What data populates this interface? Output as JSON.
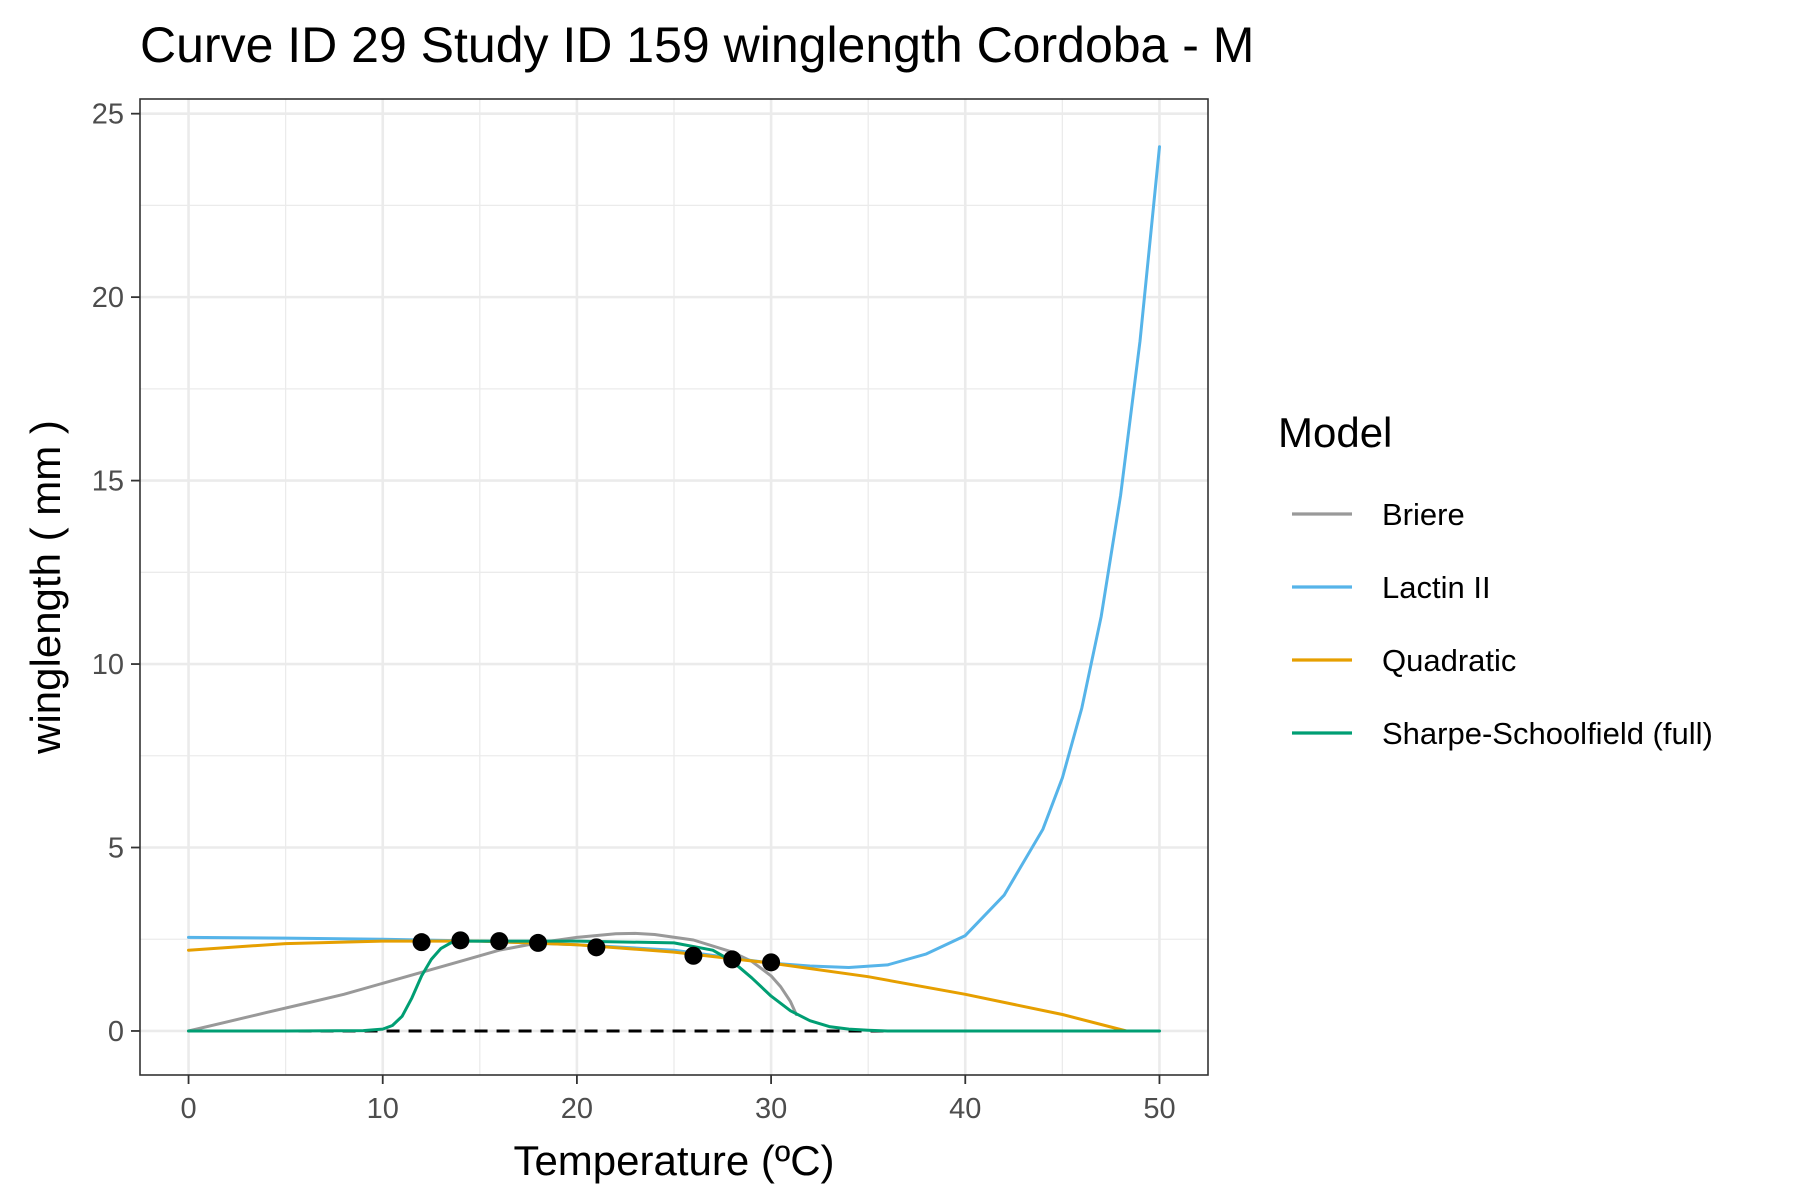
{
  "chart_data": {
    "type": "line",
    "title": "Curve ID 29 Study ID 159 winglength Cordoba - M",
    "xlabel": "Temperature (ºC)",
    "ylabel": "winglength ( mm )",
    "xlim": [
      -2.5,
      52.5
    ],
    "ylim": [
      -1.2,
      25.4
    ],
    "x_ticks": [
      0,
      10,
      20,
      30,
      40,
      50
    ],
    "x_tick_labels": [
      "0",
      "10",
      "20",
      "30",
      "40",
      "50"
    ],
    "y_ticks": [
      0,
      5,
      10,
      15,
      20,
      25
    ],
    "y_tick_labels": [
      "0",
      "5",
      "10",
      "15",
      "20",
      "25"
    ],
    "grid": true,
    "legend_title": "Model",
    "legend_position": "right",
    "reference_line": {
      "y": 0,
      "style": "dashed",
      "color": "#000000"
    },
    "points": {
      "x": [
        12,
        14,
        16,
        18,
        21,
        26,
        28,
        30
      ],
      "y": [
        2.42,
        2.47,
        2.45,
        2.4,
        2.28,
        2.05,
        1.95,
        1.87
      ],
      "color": "#000000"
    },
    "series": [
      {
        "name": "Briere",
        "color": "#999999",
        "x": [
          0,
          2,
          4,
          6,
          8,
          10,
          12,
          14,
          16,
          18,
          20,
          22,
          23,
          24,
          26,
          28,
          29,
          30,
          30.5,
          31,
          31.3
        ],
        "y": [
          0,
          0.25,
          0.5,
          0.75,
          1.0,
          1.3,
          1.6,
          1.9,
          2.2,
          2.4,
          2.55,
          2.65,
          2.66,
          2.63,
          2.48,
          2.15,
          1.9,
          1.5,
          1.2,
          0.8,
          0.45
        ]
      },
      {
        "name": "Lactin II",
        "color": "#56B4E9",
        "x": [
          0,
          5,
          10,
          15,
          20,
          25,
          30,
          32,
          34,
          36,
          38,
          40,
          42,
          44,
          45,
          46,
          47,
          48,
          49,
          50
        ],
        "y": [
          2.55,
          2.53,
          2.5,
          2.45,
          2.35,
          2.2,
          1.85,
          1.77,
          1.73,
          1.8,
          2.1,
          2.6,
          3.7,
          5.5,
          6.9,
          8.8,
          11.3,
          14.6,
          18.8,
          24.1
        ]
      },
      {
        "name": "Quadratic",
        "color": "#E69F00",
        "x": [
          0,
          5,
          10,
          15,
          20,
          25,
          30,
          35,
          40,
          45,
          48.3
        ],
        "y": [
          2.2,
          2.38,
          2.45,
          2.45,
          2.35,
          2.15,
          1.85,
          1.48,
          1.0,
          0.45,
          0
        ]
      },
      {
        "name": "Sharpe-Schoolfield (full)",
        "color": "#009E73",
        "x": [
          0,
          5,
          9,
          10,
          10.5,
          11,
          11.5,
          12,
          12.5,
          13,
          13.5,
          14,
          16,
          20,
          25,
          27,
          28,
          29,
          30,
          31,
          32,
          33,
          34,
          35,
          36,
          40,
          45,
          50
        ],
        "y": [
          0,
          0,
          0.01,
          0.05,
          0.15,
          0.4,
          0.9,
          1.5,
          1.95,
          2.25,
          2.4,
          2.45,
          2.45,
          2.45,
          2.4,
          2.2,
          1.9,
          1.45,
          0.95,
          0.55,
          0.28,
          0.12,
          0.05,
          0.02,
          0,
          0,
          0,
          0
        ]
      }
    ]
  }
}
